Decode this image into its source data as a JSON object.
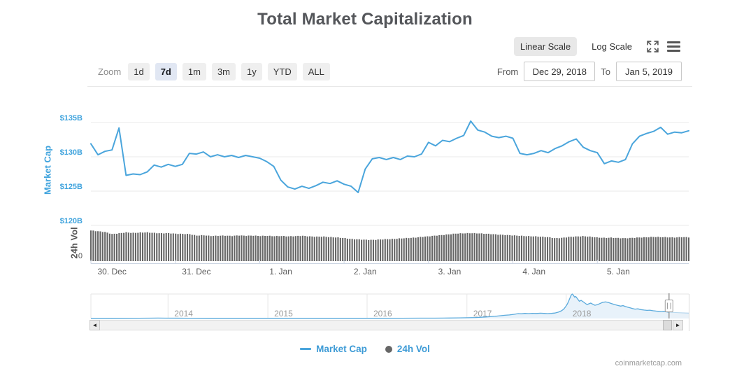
{
  "header": {
    "title": "Total Market Capitalization",
    "scale_linear": "Linear Scale",
    "scale_log": "Log Scale"
  },
  "toolbar": {
    "zoom_label": "Zoom",
    "buttons": [
      {
        "label": "1d",
        "active": false
      },
      {
        "label": "7d",
        "active": true
      },
      {
        "label": "1m",
        "active": false
      },
      {
        "label": "3m",
        "active": false
      },
      {
        "label": "1y",
        "active": false
      },
      {
        "label": "YTD",
        "active": false
      },
      {
        "label": "ALL",
        "active": false
      }
    ],
    "from_label": "From",
    "from_value": "Dec 29, 2018",
    "to_label": "To",
    "to_value": "Jan 5, 2019"
  },
  "legend": {
    "market_cap": "Market Cap",
    "vol": "24h Vol"
  },
  "footer": {
    "watermark": "coinmarketcap.com"
  },
  "colors": {
    "line_blue": "#4aa5dc",
    "axis_blue": "#3fa3dd",
    "vol_bar": "#656565",
    "gridline": "#e8e8e8",
    "nav_fill": "#e8f2fa",
    "nav_line": "#5aaadc"
  },
  "chart_data": {
    "type": "line+bar with range navigator",
    "main": {
      "y_axis_market_cap": {
        "label": "Market Cap",
        "tick_labels": [
          "$135B",
          "$130B",
          "$125B",
          "$120B"
        ],
        "tick_values_B": [
          135,
          130,
          125,
          120
        ],
        "ylim_B": [
          115,
          137.5
        ],
        "grid": true
      },
      "y_axis_volume": {
        "label": "24h Vol",
        "tick_labels": [
          "0"
        ],
        "ylim_B": [
          0,
          18
        ]
      },
      "x_ticks": [
        "30. Dec",
        "31. Dec",
        "1. Jan",
        "2. Jan",
        "3. Jan",
        "4. Jan",
        "5. Jan"
      ],
      "x_tick_label_hours": [
        6,
        30,
        54,
        78,
        102,
        126,
        150
      ],
      "x_axis_tick_hours": [
        0,
        24,
        48,
        72,
        96,
        120,
        144
      ],
      "hours_span": 170,
      "market_cap_B": {
        "h_start": 0,
        "h_step": 2,
        "values": [
          131.9,
          130.3,
          130.8,
          131.0,
          134.2,
          127.3,
          127.5,
          127.4,
          127.8,
          128.8,
          128.5,
          128.9,
          128.6,
          128.9,
          130.5,
          130.4,
          130.7,
          130.0,
          130.3,
          130.0,
          130.2,
          129.9,
          130.2,
          130.0,
          129.8,
          129.3,
          128.6,
          126.6,
          125.6,
          125.3,
          125.7,
          125.4,
          125.8,
          126.3,
          126.1,
          126.5,
          126.0,
          125.7,
          124.8,
          128.2,
          129.7,
          129.9,
          129.6,
          129.9,
          129.6,
          130.1,
          130.0,
          130.4,
          132.1,
          131.6,
          132.4,
          132.2,
          132.7,
          133.1,
          135.2,
          133.9,
          133.6,
          133.0,
          132.8,
          133.0,
          132.7,
          130.5,
          130.3,
          130.5,
          130.9,
          130.6,
          131.2,
          131.6,
          132.2,
          132.6,
          131.4,
          130.9,
          130.6,
          129.0,
          129.4,
          129.2,
          129.6,
          131.9,
          133.0,
          133.4,
          133.7,
          134.3,
          133.3,
          133.6,
          133.5,
          133.8
        ]
      },
      "volume_B": {
        "h_start": 0,
        "h_step": 2,
        "values": [
          16.2,
          15.8,
          15.4,
          14.3,
          14.7,
          15.2,
          14.9,
          15.1,
          15.2,
          14.9,
          14.7,
          14.8,
          14.5,
          14.4,
          14.3,
          13.5,
          13.7,
          13.3,
          13.4,
          13.5,
          13.3,
          13.6,
          13.4,
          13.5,
          13.3,
          13.4,
          13.2,
          13.3,
          13.1,
          13.2,
          13.4,
          13.1,
          12.9,
          13.0,
          12.7,
          12.5,
          12.2,
          11.7,
          11.5,
          11.3,
          11.2,
          11.4,
          11.6,
          11.7,
          12.0,
          12.2,
          12.4,
          12.8,
          13.1,
          13.5,
          13.8,
          14.2,
          14.6,
          14.7,
          14.8,
          14.7,
          14.5,
          14.3,
          14.0,
          13.8,
          13.6,
          13.4,
          13.2,
          13.1,
          12.9,
          12.7,
          12.1,
          12.3,
          12.8,
          13.0,
          13.2,
          12.9,
          12.5,
          12.3,
          12.4,
          12.2,
          12.1,
          12.3,
          12.5,
          12.6,
          12.8,
          12.7,
          12.6,
          12.5,
          12.7,
          12.6
        ]
      }
    },
    "navigator": {
      "year_ticks": [
        {
          "label": "2014",
          "f": 0.129
        },
        {
          "label": "2015",
          "f": 0.296
        },
        {
          "label": "2016",
          "f": 0.462
        },
        {
          "label": "2017",
          "f": 0.629
        },
        {
          "label": "2018",
          "f": 0.795
        }
      ],
      "ylim_B": [
        0,
        830
      ],
      "selected_window_f": [
        0.96,
        0.967
      ],
      "points_B": [
        [
          0.0,
          4
        ],
        [
          0.04,
          6
        ],
        [
          0.08,
          9
        ],
        [
          0.1,
          13
        ],
        [
          0.112,
          14
        ],
        [
          0.125,
          11
        ],
        [
          0.16,
          9
        ],
        [
          0.2,
          8
        ],
        [
          0.24,
          7
        ],
        [
          0.29,
          6
        ],
        [
          0.34,
          6
        ],
        [
          0.39,
          6
        ],
        [
          0.44,
          7
        ],
        [
          0.48,
          8
        ],
        [
          0.52,
          9
        ],
        [
          0.55,
          11
        ],
        [
          0.575,
          13
        ],
        [
          0.6,
          17
        ],
        [
          0.615,
          21
        ],
        [
          0.63,
          27
        ],
        [
          0.643,
          34
        ],
        [
          0.652,
          42
        ],
        [
          0.66,
          52
        ],
        [
          0.668,
          62
        ],
        [
          0.676,
          74
        ],
        [
          0.684,
          92
        ],
        [
          0.692,
          108
        ],
        [
          0.7,
          120
        ],
        [
          0.708,
          142
        ],
        [
          0.715,
          165
        ],
        [
          0.72,
          158
        ],
        [
          0.726,
          172
        ],
        [
          0.732,
          166
        ],
        [
          0.738,
          176
        ],
        [
          0.745,
          170
        ],
        [
          0.752,
          180
        ],
        [
          0.758,
          172
        ],
        [
          0.764,
          166
        ],
        [
          0.77,
          173
        ],
        [
          0.776,
          186
        ],
        [
          0.782,
          215
        ],
        [
          0.787,
          262
        ],
        [
          0.791,
          320
        ],
        [
          0.794,
          400
        ],
        [
          0.797,
          490
        ],
        [
          0.799,
          580
        ],
        [
          0.801,
          680
        ],
        [
          0.803,
          780
        ],
        [
          0.805,
          830
        ],
        [
          0.807,
          795
        ],
        [
          0.809,
          725
        ],
        [
          0.811,
          745
        ],
        [
          0.814,
          665
        ],
        [
          0.817,
          585
        ],
        [
          0.82,
          615
        ],
        [
          0.823,
          572
        ],
        [
          0.827,
          512
        ],
        [
          0.83,
          472
        ],
        [
          0.833,
          498
        ],
        [
          0.836,
          522
        ],
        [
          0.84,
          478
        ],
        [
          0.843,
          448
        ],
        [
          0.847,
          468
        ],
        [
          0.851,
          502
        ],
        [
          0.856,
          548
        ],
        [
          0.861,
          562
        ],
        [
          0.866,
          540
        ],
        [
          0.871,
          505
        ],
        [
          0.876,
          472
        ],
        [
          0.881,
          445
        ],
        [
          0.886,
          420
        ],
        [
          0.89,
          437
        ],
        [
          0.894,
          406
        ],
        [
          0.898,
          382
        ],
        [
          0.902,
          362
        ],
        [
          0.906,
          338
        ],
        [
          0.91,
          318
        ],
        [
          0.915,
          328
        ],
        [
          0.92,
          302
        ],
        [
          0.925,
          286
        ],
        [
          0.93,
          274
        ],
        [
          0.935,
          282
        ],
        [
          0.94,
          264
        ],
        [
          0.945,
          252
        ],
        [
          0.95,
          242
        ],
        [
          0.955,
          234
        ],
        [
          0.958,
          241
        ],
        [
          0.962,
          228
        ],
        [
          0.965,
          218
        ],
        [
          0.967,
          208
        ]
      ]
    }
  }
}
